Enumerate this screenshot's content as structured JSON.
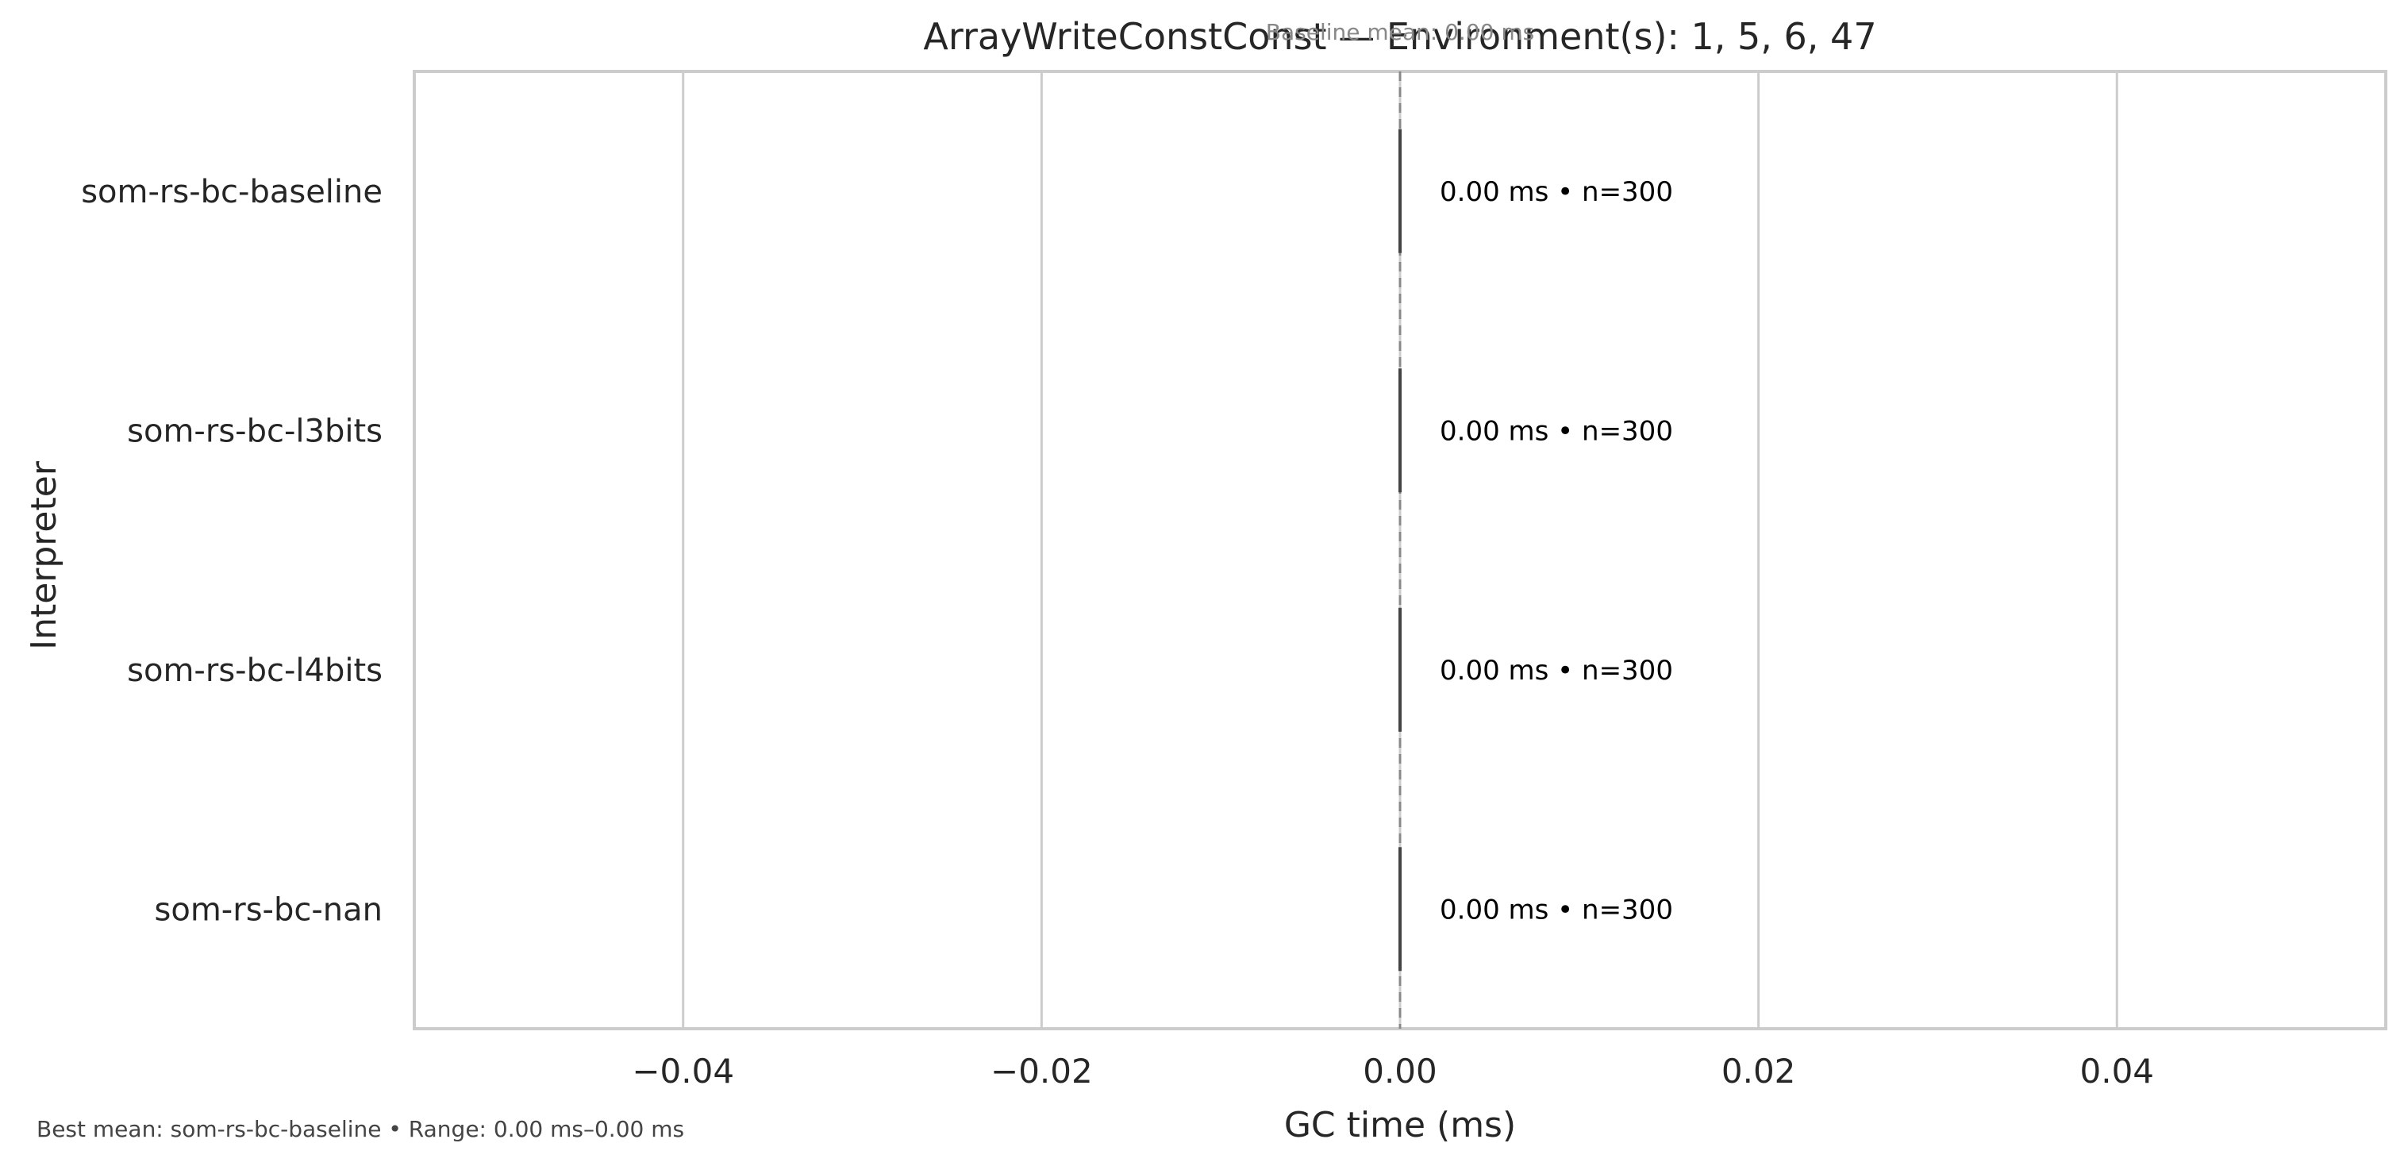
{
  "chart_data": {
    "type": "box",
    "orientation": "horizontal",
    "title": "ArrayWriteConstConst — Environment(s): 1, 5, 6, 47",
    "baseline_label": "Baseline mean: 0.00 ms",
    "xlabel": "GC time (ms)",
    "ylabel": "Interpreter",
    "xlim": [
      -0.055,
      0.055
    ],
    "x_ticks": [
      -0.04,
      -0.02,
      0.0,
      0.02,
      0.04
    ],
    "x_tick_labels": [
      "−0.04",
      "−0.02",
      "0.00",
      "0.02",
      "0.04"
    ],
    "categories": [
      "som-rs-bc-baseline",
      "som-rs-bc-l3bits",
      "som-rs-bc-l4bits",
      "som-rs-bc-nan"
    ],
    "values": [
      0.0,
      0.0,
      0.0,
      0.0
    ],
    "annotations": [
      "0.00 ms • n=300",
      "0.00 ms • n=300",
      "0.00 ms • n=300",
      "0.00 ms • n=300"
    ],
    "baseline_value": 0.0,
    "grid": "vertical",
    "colors": {
      "grid": "#cccccc",
      "spine": "#cccccc",
      "box": "#444444",
      "baseline": "#888888",
      "text": "#262626"
    }
  },
  "footer": {
    "summary": "Best mean: som-rs-bc-baseline • Range: 0.00 ms–0.00 ms"
  }
}
